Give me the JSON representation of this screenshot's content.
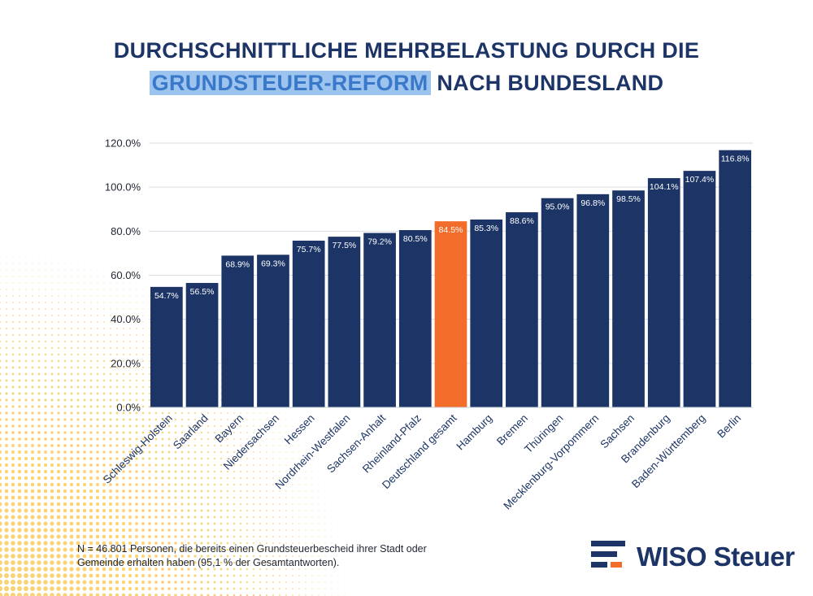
{
  "title": {
    "line1": "DURCHSCHNITTLICHE MEHRBELASTUNG DURCH DIE",
    "highlight": "GRUNDSTEUER-REFORM",
    "rest": "NACH BUNDESLAND"
  },
  "colors": {
    "bar": "#1d3566",
    "highlight_bar": "#f26c2a",
    "title": "#1d3566",
    "title_highlight_bg": "#9cc4ef",
    "title_highlight_text": "#3a78c9",
    "dots": "#f7c64a"
  },
  "chart_data": {
    "type": "bar",
    "categories": [
      "Schleswig-Holstein",
      "Saarland",
      "Bayern",
      "Niedersachsen",
      "Hessen",
      "Nordrhein-Westfalen",
      "Sachsen-Anhalt",
      "Rheinland-Pfalz",
      "Deutschland gesamt",
      "Hamburg",
      "Bremen",
      "Thüringen",
      "Mecklenburg-Vorpommern",
      "Sachsen",
      "Brandenburg",
      "Baden-Württemberg",
      "Berlin"
    ],
    "values": [
      54.7,
      56.5,
      68.9,
      69.3,
      75.7,
      77.5,
      79.2,
      80.5,
      84.5,
      85.3,
      88.6,
      95.0,
      96.8,
      98.5,
      104.1,
      107.4,
      116.8
    ],
    "value_labels": [
      "54.7%",
      "56.5%",
      "68.9%",
      "69.3%",
      "75.7%",
      "77.5%",
      "79.2%",
      "80.5%",
      "84.5%",
      "85.3%",
      "88.6%",
      "95.0%",
      "96.8%",
      "98.5%",
      "104.1%",
      "107.4%",
      "116.8%"
    ],
    "highlight_index": 8,
    "y_ticks": [
      0,
      20,
      40,
      60,
      80,
      100,
      120
    ],
    "y_tick_labels": [
      "0.0%",
      "20.0%",
      "40.0%",
      "60.0%",
      "80.0%",
      "100.0%",
      "120.0%"
    ],
    "ylim": [
      0,
      120
    ],
    "xlabel": "",
    "ylabel": "",
    "grid": true
  },
  "footnote": "N = 46.801 Personen, die bereits einen Grundsteuerbescheid ihrer Stadt oder Gemeinde erhalten haben (95,1 % der Gesamtantworten).",
  "logo": {
    "text": "WISO Steuer"
  }
}
